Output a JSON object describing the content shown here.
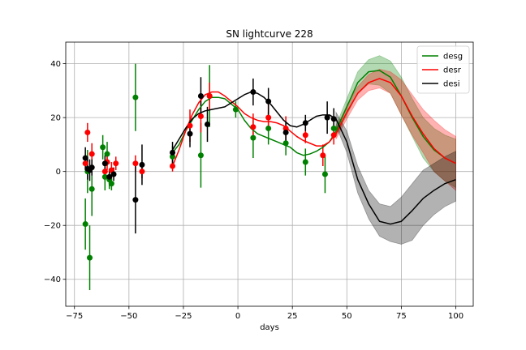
{
  "chart_data": {
    "type": "line",
    "title": "SN lightcurve 228",
    "xlabel": "days",
    "ylabel": "",
    "xlim": [
      -79,
      108
    ],
    "ylim": [
      -50,
      48
    ],
    "xticks": [
      -75,
      -50,
      -25,
      0,
      25,
      50,
      75,
      100
    ],
    "yticks": [
      -40,
      -20,
      0,
      20,
      40
    ],
    "xtick_labels": [
      "−75",
      "−50",
      "−25",
      "0",
      "25",
      "50",
      "75",
      "100"
    ],
    "ytick_labels": [
      "−40",
      "−20",
      "0",
      "20",
      "40"
    ],
    "grid": true,
    "legend_position": "upper right",
    "series": [
      {
        "name": "desg",
        "color": "#008000",
        "x": [
          -30,
          -27,
          -24,
          -21,
          -18,
          -15,
          -12,
          -9,
          -6,
          -3,
          0,
          3,
          6,
          9,
          12,
          15,
          18,
          21,
          24,
          27,
          30,
          33,
          36,
          39,
          42,
          45,
          50,
          55,
          60,
          65,
          70,
          75,
          80,
          85,
          90,
          95,
          100
        ],
        "y": [
          7,
          10,
          15,
          19,
          23,
          26,
          27.5,
          27.5,
          27,
          25,
          23,
          19,
          16,
          14,
          13,
          12,
          11,
          10,
          9,
          7,
          6,
          6.5,
          7.5,
          9,
          11,
          15,
          24,
          33,
          37,
          37.5,
          35,
          28,
          20,
          13,
          8,
          5,
          3
        ],
        "band_low": [
          null,
          null,
          null,
          null,
          null,
          null,
          null,
          null,
          null,
          null,
          null,
          null,
          null,
          null,
          null,
          null,
          null,
          null,
          null,
          null,
          null,
          null,
          null,
          null,
          null,
          13,
          21,
          29,
          32.5,
          32,
          29,
          21,
          13,
          5,
          0,
          -3.5,
          -6
        ],
        "band_high": [
          null,
          null,
          null,
          null,
          null,
          null,
          null,
          null,
          null,
          null,
          null,
          null,
          null,
          null,
          null,
          null,
          null,
          null,
          null,
          null,
          null,
          null,
          null,
          null,
          null,
          17,
          27,
          37,
          41.5,
          43,
          41,
          35,
          27,
          20,
          16,
          13.5,
          12
        ],
        "points": [
          {
            "x": -70,
            "y": -19.5,
            "err": 9.5
          },
          {
            "x": -69,
            "y": 0,
            "err": 8
          },
          {
            "x": -68,
            "y": -32,
            "err": 12
          },
          {
            "x": -67,
            "y": -6.5,
            "err": 10
          },
          {
            "x": -62,
            "y": 9,
            "err": 4.5
          },
          {
            "x": -61,
            "y": -2,
            "err": 5
          },
          {
            "x": -60,
            "y": 6.5,
            "err": 4.5
          },
          {
            "x": -59,
            "y": -3,
            "err": 3.5
          },
          {
            "x": -58,
            "y": -4.5,
            "err": 2.5
          },
          {
            "x": -47,
            "y": 27.5,
            "err": 12.5
          },
          {
            "x": -30,
            "y": 5.5,
            "err": 4
          },
          {
            "x": -17,
            "y": 6,
            "err": 12
          },
          {
            "x": -13,
            "y": 28,
            "err": 11.5
          },
          {
            "x": -1,
            "y": 23,
            "err": 3
          },
          {
            "x": 7,
            "y": 12.5,
            "err": 7.5
          },
          {
            "x": 14,
            "y": 16,
            "err": 6
          },
          {
            "x": 22,
            "y": 10.5,
            "err": 4.5
          },
          {
            "x": 31,
            "y": 3.5,
            "err": 5
          },
          {
            "x": 40,
            "y": -1,
            "err": 7
          },
          {
            "x": 44,
            "y": 16,
            "err": 3.5
          }
        ]
      },
      {
        "name": "desr",
        "color": "#ff0000",
        "x": [
          -30,
          -27,
          -24,
          -21,
          -18,
          -15,
          -12,
          -9,
          -6,
          -3,
          0,
          3,
          6,
          9,
          12,
          15,
          18,
          21,
          24,
          27,
          30,
          33,
          36,
          39,
          42,
          45,
          50,
          55,
          60,
          65,
          70,
          75,
          80,
          85,
          90,
          95,
          100
        ],
        "y": [
          2,
          8,
          15,
          21,
          25.5,
          28.5,
          29.5,
          29.5,
          28,
          26,
          24,
          21.5,
          20,
          19,
          18.5,
          18.5,
          18,
          17,
          15,
          13,
          11.5,
          10.5,
          9.5,
          9.5,
          11,
          14,
          22,
          29,
          33,
          34.5,
          33,
          28,
          20.5,
          14,
          8.5,
          5,
          3
        ],
        "band_low": [
          null,
          null,
          null,
          null,
          null,
          null,
          null,
          null,
          null,
          null,
          null,
          null,
          null,
          null,
          null,
          null,
          null,
          null,
          null,
          null,
          null,
          null,
          null,
          null,
          null,
          12,
          19.5,
          26.5,
          30,
          31,
          29,
          21,
          13.5,
          7,
          0,
          -3.5,
          -7
        ],
        "band_high": [
          null,
          null,
          null,
          null,
          null,
          null,
          null,
          null,
          null,
          null,
          null,
          null,
          null,
          null,
          null,
          null,
          null,
          null,
          null,
          null,
          null,
          null,
          null,
          null,
          null,
          16,
          24.5,
          31.5,
          36,
          38,
          37,
          34,
          28.5,
          23,
          19,
          15.5,
          13
        ],
        "points": [
          {
            "x": -70,
            "y": 3,
            "err": 2.5
          },
          {
            "x": -69,
            "y": 14.5,
            "err": 3.5
          },
          {
            "x": -67,
            "y": 6.5,
            "err": 4
          },
          {
            "x": -61,
            "y": 0,
            "err": 3
          },
          {
            "x": -60,
            "y": 3.5,
            "err": 3
          },
          {
            "x": -58,
            "y": 0.5,
            "err": 3
          },
          {
            "x": -56,
            "y": 3,
            "err": 2.5
          },
          {
            "x": -47,
            "y": 3,
            "err": 3
          },
          {
            "x": -44,
            "y": 0,
            "err": 2.5
          },
          {
            "x": -30,
            "y": 2,
            "err": 2
          },
          {
            "x": -22,
            "y": 17,
            "err": 6
          },
          {
            "x": -17,
            "y": 20.5,
            "err": 6
          },
          {
            "x": -13,
            "y": 28,
            "err": 5
          },
          {
            "x": 7,
            "y": 16.5,
            "err": 5
          },
          {
            "x": 14,
            "y": 20,
            "err": 5
          },
          {
            "x": 22,
            "y": 16,
            "err": 4.5
          },
          {
            "x": 31,
            "y": 13.5,
            "err": 3
          },
          {
            "x": 39,
            "y": 6,
            "err": 4
          },
          {
            "x": 44,
            "y": 13.5,
            "err": 3.5
          }
        ]
      },
      {
        "name": "desi",
        "color": "#000000",
        "x": [
          -30,
          -27,
          -24,
          -21,
          -18,
          -15,
          -12,
          -9,
          -6,
          -3,
          0,
          3,
          6,
          9,
          12,
          15,
          18,
          21,
          24,
          27,
          30,
          33,
          36,
          39,
          42,
          45,
          50,
          55,
          60,
          65,
          70,
          75,
          80,
          85,
          90,
          95,
          100
        ],
        "y": [
          8,
          12,
          16,
          19.5,
          21.5,
          22.5,
          23,
          23.5,
          24,
          25.5,
          27,
          28.5,
          29.5,
          29,
          27.5,
          25,
          22,
          19,
          17,
          16.5,
          17.5,
          19,
          20.5,
          21,
          21,
          19.5,
          11,
          -3,
          -12,
          -18.5,
          -19.5,
          -18.5,
          -14.5,
          -10,
          -7,
          -4.5,
          -3
        ],
        "band_low": [
          null,
          null,
          null,
          null,
          null,
          null,
          null,
          null,
          null,
          null,
          null,
          null,
          null,
          null,
          null,
          null,
          null,
          null,
          null,
          null,
          null,
          null,
          null,
          null,
          null,
          17,
          7,
          -8,
          -17.5,
          -24,
          -26,
          -27,
          -25.5,
          -20,
          -16,
          -13,
          -11
        ],
        "band_high": [
          null,
          null,
          null,
          null,
          null,
          null,
          null,
          null,
          null,
          null,
          null,
          null,
          null,
          null,
          null,
          null,
          null,
          null,
          null,
          null,
          null,
          null,
          null,
          null,
          null,
          22,
          15,
          2,
          -7,
          -12,
          -13,
          -9.5,
          -4.5,
          0.5,
          3,
          5.5,
          7.5
        ],
        "points": [
          {
            "x": -70,
            "y": 5,
            "err": 4
          },
          {
            "x": -69,
            "y": 1,
            "err": 4
          },
          {
            "x": -68,
            "y": 0.5,
            "err": 4
          },
          {
            "x": -67,
            "y": 1.5,
            "err": 3
          },
          {
            "x": -61,
            "y": 3,
            "err": 3
          },
          {
            "x": -59,
            "y": -2,
            "err": 3
          },
          {
            "x": -57,
            "y": -1,
            "err": 2.5
          },
          {
            "x": -47,
            "y": -10.5,
            "err": 12.5
          },
          {
            "x": -44,
            "y": 2.5,
            "err": 7.5
          },
          {
            "x": -30,
            "y": 7,
            "err": 4
          },
          {
            "x": -22,
            "y": 14,
            "err": 5
          },
          {
            "x": -17,
            "y": 28,
            "err": 7
          },
          {
            "x": -14,
            "y": 17.5,
            "err": 6.5
          },
          {
            "x": 7,
            "y": 29.5,
            "err": 5
          },
          {
            "x": 14,
            "y": 26,
            "err": 5
          },
          {
            "x": 22,
            "y": 14.5,
            "err": 4
          },
          {
            "x": 31,
            "y": 18,
            "err": 3
          },
          {
            "x": 41,
            "y": 20,
            "err": 6
          },
          {
            "x": 44,
            "y": 19.5,
            "err": 4
          }
        ]
      }
    ]
  }
}
